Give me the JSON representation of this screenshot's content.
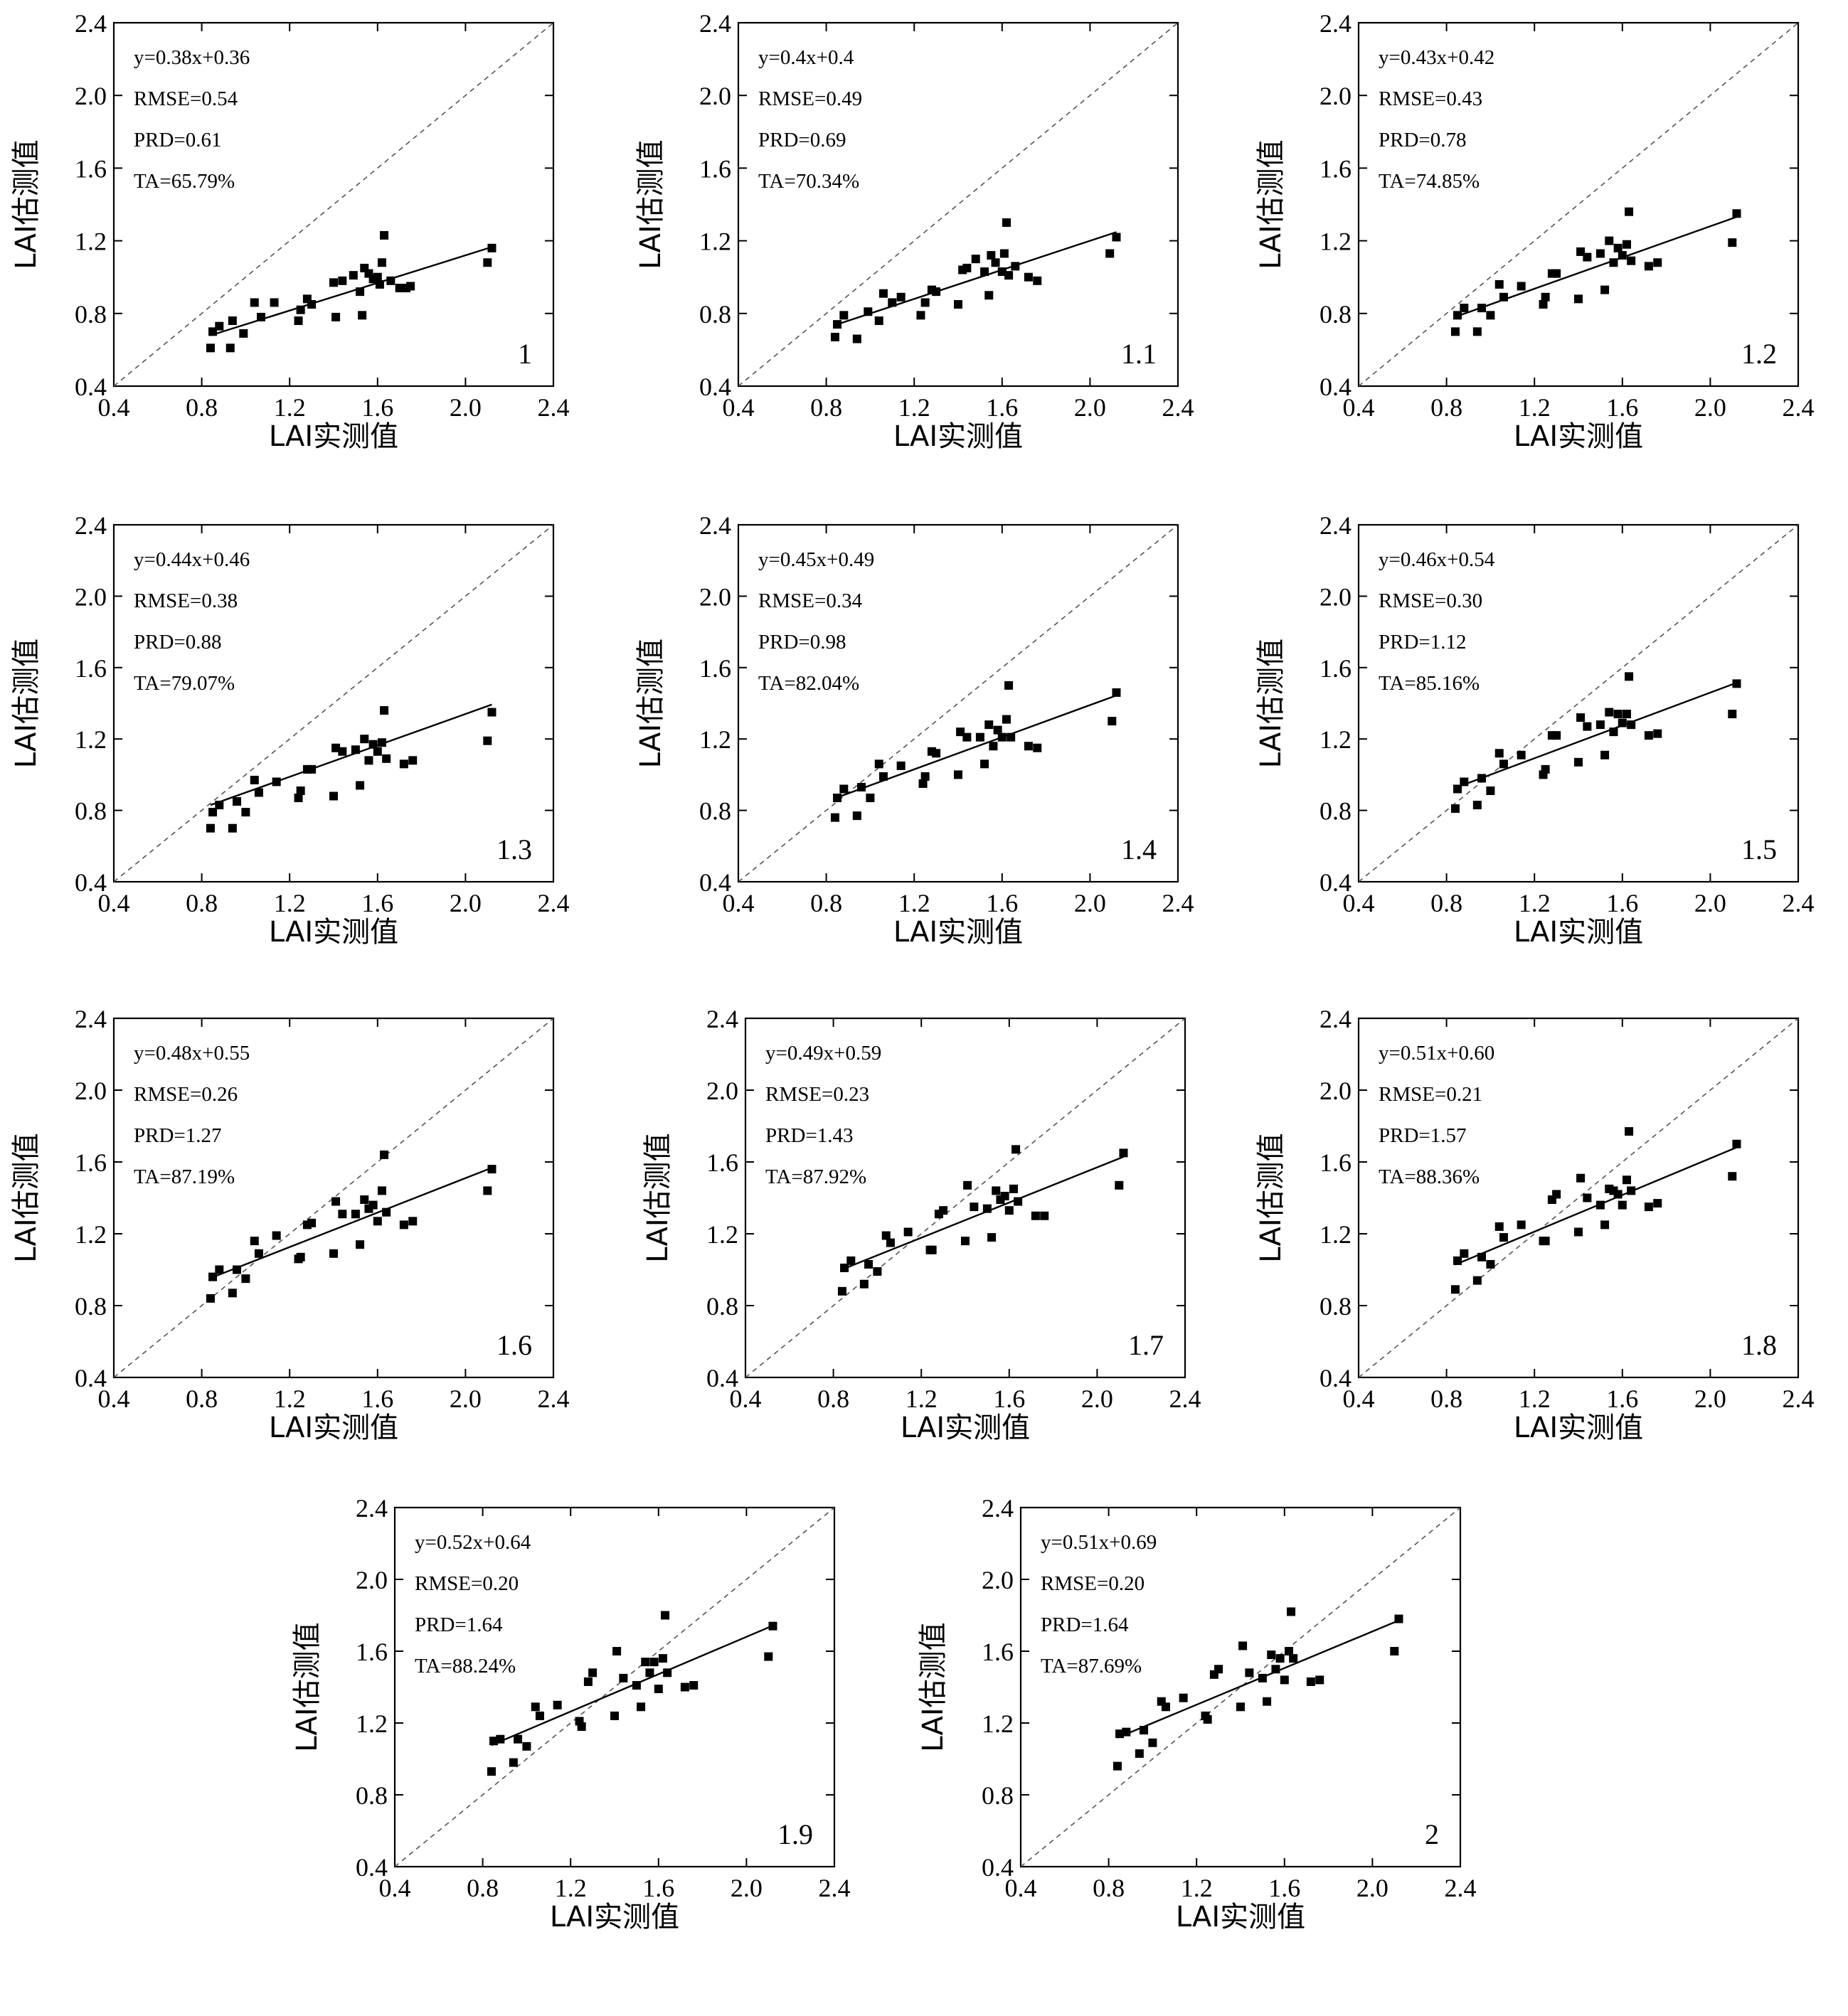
{
  "chart_data": [
    {
      "type": "scatter",
      "panel_label": "1",
      "title": "",
      "xlabel": "LAI实测值",
      "ylabel": "LAI估测值",
      "xlim": [
        0.4,
        2.4
      ],
      "ylim": [
        0.4,
        2.4
      ],
      "x_ticks": [
        "0.4",
        "0.8",
        "1.2",
        "1.6",
        "2.0",
        "2.4"
      ],
      "y_ticks": [
        "0.4",
        "0.8",
        "1.2",
        "1.6",
        "2.0",
        "2.4"
      ],
      "stats": [
        "y=0.38x+0.36",
        "RMSE=0.54",
        "PRD=0.61",
        "TA=65.79%"
      ],
      "fit": {
        "slope": 0.38,
        "intercept": 0.36,
        "x_range": [
          0.84,
          2.12
        ]
      },
      "reference_line": "y=x (dashed)",
      "x": [
        0.84,
        0.85,
        0.88,
        0.93,
        0.94,
        0.99,
        1.04,
        1.07,
        1.13,
        1.24,
        1.25,
        1.28,
        1.3,
        1.4,
        1.41,
        1.44,
        1.49,
        1.52,
        1.53,
        1.54,
        1.56,
        1.58,
        1.6,
        1.61,
        1.62,
        1.63,
        1.66,
        1.7,
        1.73,
        1.75,
        2.1,
        2.12
      ],
      "y": [
        0.61,
        0.7,
        0.73,
        0.61,
        0.76,
        0.69,
        0.86,
        0.78,
        0.86,
        0.76,
        0.82,
        0.88,
        0.85,
        0.97,
        0.78,
        0.98,
        1.01,
        0.92,
        0.79,
        1.05,
        1.02,
        0.99,
        1.0,
        0.96,
        1.08,
        1.23,
        0.98,
        0.94,
        0.94,
        0.95,
        1.08,
        1.16
      ]
    },
    {
      "type": "scatter",
      "panel_label": "1.1",
      "title": "",
      "xlabel": "LAI实测值",
      "ylabel": "LAI估测值",
      "xlim": [
        0.4,
        2.4
      ],
      "ylim": [
        0.4,
        2.4
      ],
      "x_ticks": [
        "0.4",
        "0.8",
        "1.2",
        "1.6",
        "2.0",
        "2.4"
      ],
      "y_ticks": [
        "0.4",
        "0.8",
        "1.2",
        "1.6",
        "2.0",
        "2.4"
      ],
      "stats": [
        "y=0.4x+0.4",
        "RMSE=0.49",
        "PRD=0.69",
        "TA=70.34%"
      ],
      "fit": {
        "slope": 0.4,
        "intercept": 0.4,
        "x_range": [
          0.84,
          2.12
        ]
      },
      "reference_line": "y=x (dashed)",
      "x": [
        0.84,
        0.85,
        0.88,
        0.94,
        0.99,
        1.04,
        1.06,
        1.1,
        1.14,
        1.23,
        1.25,
        1.28,
        1.3,
        1.4,
        1.42,
        1.44,
        1.48,
        1.52,
        1.54,
        1.55,
        1.57,
        1.6,
        1.61,
        1.62,
        1.63,
        1.66,
        1.72,
        1.76,
        2.09,
        2.12
      ],
      "y": [
        0.67,
        0.74,
        0.79,
        0.66,
        0.81,
        0.76,
        0.91,
        0.86,
        0.89,
        0.79,
        0.86,
        0.93,
        0.92,
        0.85,
        1.04,
        1.05,
        1.1,
        1.03,
        0.9,
        1.12,
        1.08,
        1.03,
        1.13,
        1.3,
        1.01,
        1.06,
        1.0,
        0.98,
        1.13,
        1.22
      ]
    },
    {
      "type": "scatter",
      "panel_label": "1.2",
      "title": "",
      "xlabel": "LAI实测值",
      "ylabel": "LAI估测值",
      "xlim": [
        0.4,
        2.4
      ],
      "ylim": [
        0.4,
        2.4
      ],
      "x_ticks": [
        "0.4",
        "0.8",
        "1.2",
        "1.6",
        "2.0",
        "2.4"
      ],
      "y_ticks": [
        "0.4",
        "0.8",
        "1.2",
        "1.6",
        "2.0",
        "2.4"
      ],
      "stats": [
        "y=0.43x+0.42",
        "RMSE=0.43",
        "PRD=0.78",
        "TA=74.85%"
      ],
      "fit": {
        "slope": 0.43,
        "intercept": 0.42,
        "x_range": [
          0.84,
          2.12
        ]
      },
      "reference_line": "y=x (dashed)",
      "x": [
        0.84,
        0.85,
        0.88,
        0.94,
        0.96,
        1.0,
        1.04,
        1.06,
        1.14,
        1.24,
        1.25,
        1.28,
        1.3,
        1.4,
        1.41,
        1.44,
        1.5,
        1.52,
        1.54,
        1.56,
        1.58,
        1.6,
        1.62,
        1.63,
        1.64,
        1.72,
        1.76,
        2.1,
        2.12
      ],
      "y": [
        0.7,
        0.79,
        0.83,
        0.7,
        0.83,
        0.79,
        0.96,
        0.89,
        0.95,
        0.85,
        0.89,
        1.02,
        1.02,
        0.88,
        1.14,
        1.11,
        1.13,
        0.93,
        1.2,
        1.08,
        1.16,
        1.12,
        1.18,
        1.36,
        1.09,
        1.06,
        1.08,
        1.19,
        1.35
      ]
    },
    {
      "type": "scatter",
      "panel_label": "1.3",
      "title": "",
      "xlabel": "LAI实测值",
      "ylabel": "LAI估测值",
      "xlim": [
        0.4,
        2.4
      ],
      "ylim": [
        0.4,
        2.4
      ],
      "x_ticks": [
        "0.4",
        "0.8",
        "1.2",
        "1.6",
        "2.0",
        "2.4"
      ],
      "y_ticks": [
        "0.4",
        "0.8",
        "1.2",
        "1.6",
        "2.0",
        "2.4"
      ],
      "stats": [
        "y=0.44x+0.46",
        "RMSE=0.38",
        "PRD=0.88",
        "TA=79.07%"
      ],
      "fit": {
        "slope": 0.44,
        "intercept": 0.46,
        "x_range": [
          0.84,
          2.12
        ]
      },
      "reference_line": "y=x (dashed)",
      "x": [
        0.84,
        0.85,
        0.88,
        0.94,
        0.96,
        1.0,
        1.04,
        1.06,
        1.14,
        1.24,
        1.25,
        1.28,
        1.3,
        1.4,
        1.41,
        1.44,
        1.5,
        1.52,
        1.54,
        1.56,
        1.58,
        1.6,
        1.62,
        1.63,
        1.64,
        1.72,
        1.76,
        2.1,
        2.12
      ],
      "y": [
        0.7,
        0.79,
        0.83,
        0.7,
        0.85,
        0.79,
        0.97,
        0.9,
        0.96,
        0.87,
        0.91,
        1.03,
        1.03,
        0.88,
        1.15,
        1.13,
        1.14,
        0.94,
        1.2,
        1.08,
        1.17,
        1.13,
        1.18,
        1.36,
        1.09,
        1.06,
        1.08,
        1.19,
        1.35
      ]
    },
    {
      "type": "scatter",
      "panel_label": "1.4",
      "title": "",
      "xlabel": "LAI实测值",
      "ylabel": "LAI估测值",
      "xlim": [
        0.4,
        2.4
      ],
      "ylim": [
        0.4,
        2.4
      ],
      "x_ticks": [
        "0.4",
        "0.8",
        "1.2",
        "1.6",
        "2.0",
        "2.4"
      ],
      "y_ticks": [
        "0.4",
        "0.8",
        "1.2",
        "1.6",
        "2.0",
        "2.4"
      ],
      "stats": [
        "y=0.45x+0.49",
        "RMSE=0.34",
        "PRD=0.98",
        "TA=82.04%"
      ],
      "fit": {
        "slope": 0.45,
        "intercept": 0.49,
        "x_range": [
          0.84,
          2.12
        ]
      },
      "reference_line": "y=x (dashed)",
      "x": [
        0.84,
        0.85,
        0.88,
        0.94,
        0.96,
        1.0,
        1.04,
        1.06,
        1.14,
        1.24,
        1.25,
        1.28,
        1.3,
        1.4,
        1.41,
        1.44,
        1.5,
        1.52,
        1.54,
        1.56,
        1.58,
        1.6,
        1.62,
        1.63,
        1.64,
        1.72,
        1.76,
        2.1,
        2.12
      ],
      "y": [
        0.76,
        0.87,
        0.92,
        0.77,
        0.93,
        0.87,
        1.06,
        0.99,
        1.05,
        0.95,
        0.99,
        1.13,
        1.12,
        1.0,
        1.24,
        1.21,
        1.21,
        1.06,
        1.28,
        1.16,
        1.25,
        1.21,
        1.31,
        1.5,
        1.21,
        1.16,
        1.15,
        1.3,
        1.46
      ]
    },
    {
      "type": "scatter",
      "panel_label": "1.5",
      "title": "",
      "xlabel": "LAI实测值",
      "ylabel": "LAI估测值",
      "xlim": [
        0.4,
        2.4
      ],
      "ylim": [
        0.4,
        2.4
      ],
      "x_ticks": [
        "0.4",
        "0.8",
        "1.2",
        "1.6",
        "2.0",
        "2.4"
      ],
      "y_ticks": [
        "0.4",
        "0.8",
        "1.2",
        "1.6",
        "2.0",
        "2.4"
      ],
      "stats": [
        "y=0.46x+0.54",
        "RMSE=0.30",
        "PRD=1.12",
        "TA=85.16%"
      ],
      "fit": {
        "slope": 0.46,
        "intercept": 0.54,
        "x_range": [
          0.84,
          2.12
        ]
      },
      "reference_line": "y=x (dashed)",
      "x": [
        0.84,
        0.85,
        0.88,
        0.94,
        0.96,
        1.0,
        1.04,
        1.06,
        1.14,
        1.24,
        1.25,
        1.28,
        1.3,
        1.4,
        1.41,
        1.44,
        1.5,
        1.52,
        1.54,
        1.56,
        1.58,
        1.6,
        1.62,
        1.63,
        1.64,
        1.72,
        1.76,
        2.1,
        2.12
      ],
      "y": [
        0.81,
        0.92,
        0.96,
        0.83,
        0.98,
        0.91,
        1.12,
        1.06,
        1.11,
        1.0,
        1.03,
        1.22,
        1.22,
        1.07,
        1.32,
        1.27,
        1.28,
        1.11,
        1.35,
        1.24,
        1.34,
        1.29,
        1.34,
        1.55,
        1.28,
        1.22,
        1.23,
        1.34,
        1.51
      ]
    },
    {
      "type": "scatter",
      "panel_label": "1.6",
      "title": "",
      "xlabel": "LAI实测值",
      "ylabel": "LAI估测值",
      "xlim": [
        0.4,
        2.4
      ],
      "ylim": [
        0.4,
        2.4
      ],
      "x_ticks": [
        "0.4",
        "0.8",
        "1.2",
        "1.6",
        "2.0",
        "2.4"
      ],
      "y_ticks": [
        "0.4",
        "0.8",
        "1.2",
        "1.6",
        "2.0",
        "2.4"
      ],
      "stats": [
        "y=0.48x+0.55",
        "RMSE=0.26",
        "PRD=1.27",
        "TA=87.19%"
      ],
      "fit": {
        "slope": 0.48,
        "intercept": 0.55,
        "x_range": [
          0.84,
          2.12
        ]
      },
      "reference_line": "y=x (dashed)",
      "x": [
        0.84,
        0.85,
        0.88,
        0.94,
        0.96,
        1.0,
        1.04,
        1.06,
        1.14,
        1.24,
        1.25,
        1.28,
        1.3,
        1.4,
        1.41,
        1.44,
        1.5,
        1.52,
        1.54,
        1.56,
        1.58,
        1.6,
        1.62,
        1.63,
        1.64,
        1.72,
        1.76,
        2.1,
        2.12
      ],
      "y": [
        0.84,
        0.96,
        1.0,
        0.87,
        1.0,
        0.95,
        1.16,
        1.09,
        1.19,
        1.06,
        1.07,
        1.25,
        1.26,
        1.09,
        1.38,
        1.31,
        1.31,
        1.14,
        1.39,
        1.34,
        1.36,
        1.27,
        1.44,
        1.64,
        1.32,
        1.25,
        1.27,
        1.44,
        1.56
      ]
    },
    {
      "type": "scatter",
      "panel_label": "1.7",
      "title": "",
      "xlabel": "LAI实测值",
      "ylabel": "LAI估测值",
      "xlim": [
        0.4,
        2.4
      ],
      "ylim": [
        0.4,
        2.4
      ],
      "x_ticks": [
        "0.4",
        "0.8",
        "1.2",
        "1.6",
        "2.0",
        "2.4"
      ],
      "y_ticks": [
        "0.4",
        "0.8",
        "1.2",
        "1.6",
        "2.0",
        "2.4"
      ],
      "stats": [
        "y=0.49x+0.59",
        "RMSE=0.23",
        "PRD=1.43",
        "TA=87.92%"
      ],
      "fit": {
        "slope": 0.49,
        "intercept": 0.59,
        "x_range": [
          0.84,
          2.12
        ]
      },
      "reference_line": "y=x (dashed)",
      "x": [
        0.84,
        0.85,
        0.88,
        0.94,
        0.96,
        1.0,
        1.04,
        1.06,
        1.14,
        1.24,
        1.25,
        1.28,
        1.3,
        1.4,
        1.41,
        1.44,
        1.5,
        1.52,
        1.54,
        1.56,
        1.58,
        1.6,
        1.62,
        1.63,
        1.64,
        1.72,
        1.76,
        2.1,
        2.12
      ],
      "y": [
        0.88,
        1.01,
        1.05,
        0.92,
        1.03,
        0.99,
        1.19,
        1.15,
        1.21,
        1.11,
        1.11,
        1.31,
        1.33,
        1.16,
        1.47,
        1.35,
        1.34,
        1.18,
        1.44,
        1.39,
        1.41,
        1.33,
        1.45,
        1.67,
        1.38,
        1.3,
        1.3,
        1.47,
        1.65
      ]
    },
    {
      "type": "scatter",
      "panel_label": "1.8",
      "title": "",
      "xlabel": "LAI实测值",
      "ylabel": "LAI估测值",
      "xlim": [
        0.4,
        2.4
      ],
      "ylim": [
        0.4,
        2.4
      ],
      "x_ticks": [
        "0.4",
        "0.8",
        "1.2",
        "1.6",
        "2.0",
        "2.4"
      ],
      "y_ticks": [
        "0.4",
        "0.8",
        "1.2",
        "1.6",
        "2.0",
        "2.4"
      ],
      "stats": [
        "y=0.51x+0.60",
        "RMSE=0.21",
        "PRD=1.57",
        "TA=88.36%"
      ],
      "fit": {
        "slope": 0.51,
        "intercept": 0.6,
        "x_range": [
          0.84,
          2.12
        ]
      },
      "reference_line": "y=x (dashed)",
      "x": [
        0.84,
        0.85,
        0.88,
        0.94,
        0.96,
        1.0,
        1.04,
        1.06,
        1.14,
        1.24,
        1.25,
        1.28,
        1.3,
        1.4,
        1.41,
        1.44,
        1.5,
        1.52,
        1.54,
        1.56,
        1.58,
        1.6,
        1.62,
        1.63,
        1.64,
        1.72,
        1.76,
        2.1,
        2.12
      ],
      "y": [
        0.89,
        1.05,
        1.09,
        0.94,
        1.07,
        1.03,
        1.24,
        1.18,
        1.25,
        1.16,
        1.16,
        1.39,
        1.42,
        1.21,
        1.51,
        1.4,
        1.36,
        1.25,
        1.45,
        1.44,
        1.42,
        1.36,
        1.5,
        1.77,
        1.44,
        1.35,
        1.37,
        1.52,
        1.7
      ]
    },
    {
      "type": "scatter",
      "panel_label": "1.9",
      "title": "",
      "xlabel": "LAI实测值",
      "ylabel": "LAI估测值",
      "xlim": [
        0.4,
        2.4
      ],
      "ylim": [
        0.4,
        2.4
      ],
      "x_ticks": [
        "0.4",
        "0.8",
        "1.2",
        "1.6",
        "2.0",
        "2.4"
      ],
      "y_ticks": [
        "0.4",
        "0.8",
        "1.2",
        "1.6",
        "2.0",
        "2.4"
      ],
      "stats": [
        "y=0.52x+0.64",
        "RMSE=0.20",
        "PRD=1.64",
        "TA=88.24%"
      ],
      "fit": {
        "slope": 0.52,
        "intercept": 0.64,
        "x_range": [
          0.84,
          2.12
        ]
      },
      "reference_line": "y=x (dashed)",
      "x": [
        0.84,
        0.85,
        0.88,
        0.94,
        0.96,
        1.0,
        1.04,
        1.06,
        1.14,
        1.24,
        1.25,
        1.28,
        1.3,
        1.4,
        1.41,
        1.44,
        1.5,
        1.52,
        1.54,
        1.56,
        1.58,
        1.6,
        1.62,
        1.63,
        1.64,
        1.72,
        1.76,
        2.1,
        2.12
      ],
      "y": [
        0.93,
        1.1,
        1.11,
        0.98,
        1.11,
        1.07,
        1.29,
        1.24,
        1.3,
        1.21,
        1.18,
        1.43,
        1.48,
        1.24,
        1.6,
        1.45,
        1.41,
        1.29,
        1.54,
        1.48,
        1.54,
        1.39,
        1.56,
        1.8,
        1.48,
        1.4,
        1.41,
        1.57,
        1.74
      ]
    },
    {
      "type": "scatter",
      "panel_label": "2",
      "title": "",
      "xlabel": "LAI实测值",
      "ylabel": "LAI估测值",
      "xlim": [
        0.4,
        2.4
      ],
      "ylim": [
        0.4,
        2.4
      ],
      "x_ticks": [
        "0.4",
        "0.8",
        "1.2",
        "1.6",
        "2.0",
        "2.4"
      ],
      "y_ticks": [
        "0.4",
        "0.8",
        "1.2",
        "1.6",
        "2.0",
        "2.4"
      ],
      "stats": [
        "y=0.51x+0.69",
        "RMSE=0.20",
        "PRD=1.64",
        "TA=87.69%"
      ],
      "fit": {
        "slope": 0.51,
        "intercept": 0.69,
        "x_range": [
          0.84,
          2.12
        ]
      },
      "reference_line": "y=x (dashed)",
      "x": [
        0.84,
        0.85,
        0.88,
        0.94,
        0.96,
        1.0,
        1.04,
        1.06,
        1.14,
        1.24,
        1.25,
        1.28,
        1.3,
        1.4,
        1.41,
        1.44,
        1.5,
        1.52,
        1.54,
        1.56,
        1.58,
        1.6,
        1.62,
        1.63,
        1.64,
        1.72,
        1.76,
        2.1,
        2.12
      ],
      "y": [
        0.96,
        1.14,
        1.15,
        1.03,
        1.16,
        1.09,
        1.32,
        1.29,
        1.34,
        1.24,
        1.22,
        1.47,
        1.5,
        1.29,
        1.63,
        1.48,
        1.45,
        1.32,
        1.58,
        1.5,
        1.56,
        1.44,
        1.6,
        1.82,
        1.56,
        1.43,
        1.44,
        1.6,
        1.78
      ]
    }
  ]
}
